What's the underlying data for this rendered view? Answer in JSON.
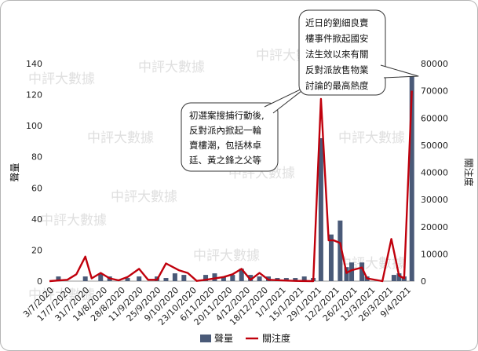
{
  "chart_data": {
    "type": "bar",
    "categories": [
      "3/7/2020",
      "17/7/2020",
      "31/7/2020",
      "14/8/2020",
      "28/8/2020",
      "11/9/2020",
      "25/9/2020",
      "9/10/2020",
      "23/10/2020",
      "6/11/2020",
      "20/11/2020",
      "4/12/2020",
      "18/12/2020",
      "1/1/2021",
      "15/1/2021",
      "29/1/2021",
      "12/2/2021",
      "26/2/2021",
      "12/3/2021",
      "26/3/2021",
      "9/4/2021"
    ],
    "bar_series": {
      "name": "聲量",
      "color": "#4a5a78",
      "points": [
        {
          "x": "2020-07-10",
          "y": 3
        },
        {
          "x": "2020-07-31",
          "y": 3
        },
        {
          "x": "2020-08-12",
          "y": 5
        },
        {
          "x": "2020-08-19",
          "y": 3
        },
        {
          "x": "2020-09-02",
          "y": 2
        },
        {
          "x": "2020-09-11",
          "y": 3
        },
        {
          "x": "2020-09-25",
          "y": 3
        },
        {
          "x": "2020-10-02",
          "y": 2
        },
        {
          "x": "2020-10-09",
          "y": 5
        },
        {
          "x": "2020-10-16",
          "y": 4
        },
        {
          "x": "2020-11-02",
          "y": 4
        },
        {
          "x": "2020-11-09",
          "y": 5
        },
        {
          "x": "2020-11-16",
          "y": 3
        },
        {
          "x": "2020-11-23",
          "y": 4
        },
        {
          "x": "2020-11-30",
          "y": 8
        },
        {
          "x": "2020-12-07",
          "y": 4
        },
        {
          "x": "2020-12-14",
          "y": 3
        },
        {
          "x": "2020-12-21",
          "y": 3
        },
        {
          "x": "2020-12-28",
          "y": 2
        },
        {
          "x": "2021-01-04",
          "y": 2
        },
        {
          "x": "2021-01-11",
          "y": 2
        },
        {
          "x": "2021-01-18",
          "y": 3
        },
        {
          "x": "2021-01-25",
          "y": 2
        },
        {
          "x": "2021-01-31",
          "y": 92
        },
        {
          "x": "2021-02-08",
          "y": 30
        },
        {
          "x": "2021-02-15",
          "y": 39
        },
        {
          "x": "2021-02-20",
          "y": 9
        },
        {
          "x": "2021-02-24",
          "y": 12
        },
        {
          "x": "2021-03-04",
          "y": 12
        },
        {
          "x": "2021-03-08",
          "y": 3
        },
        {
          "x": "2021-03-29",
          "y": 4
        },
        {
          "x": "2021-04-02",
          "y": 5
        },
        {
          "x": "2021-04-06",
          "y": 3
        },
        {
          "x": "2021-04-12",
          "y": 132
        }
      ]
    },
    "line_series": {
      "name": "關注度",
      "color": "#c0000c",
      "points": [
        {
          "x": "2020-07-03",
          "y": 0
        },
        {
          "x": "2020-07-17",
          "y": 500
        },
        {
          "x": "2020-07-24",
          "y": 2500
        },
        {
          "x": "2020-07-31",
          "y": 9000
        },
        {
          "x": "2020-08-05",
          "y": 1000
        },
        {
          "x": "2020-08-12",
          "y": 3000
        },
        {
          "x": "2020-08-19",
          "y": 1000
        },
        {
          "x": "2020-08-26",
          "y": 300
        },
        {
          "x": "2020-09-02",
          "y": 1500
        },
        {
          "x": "2020-09-11",
          "y": 4500
        },
        {
          "x": "2020-09-18",
          "y": 500
        },
        {
          "x": "2020-09-25",
          "y": 500
        },
        {
          "x": "2020-10-02",
          "y": 6500
        },
        {
          "x": "2020-10-12",
          "y": 4000
        },
        {
          "x": "2020-10-19",
          "y": 3000
        },
        {
          "x": "2020-10-26",
          "y": 100
        },
        {
          "x": "2020-11-02",
          "y": 500
        },
        {
          "x": "2020-11-16",
          "y": 1500
        },
        {
          "x": "2020-11-23",
          "y": 2500
        },
        {
          "x": "2020-11-30",
          "y": 4500
        },
        {
          "x": "2020-12-07",
          "y": 500
        },
        {
          "x": "2020-12-14",
          "y": 3000
        },
        {
          "x": "2020-12-21",
          "y": 500
        },
        {
          "x": "2021-01-04",
          "y": 200
        },
        {
          "x": "2021-01-11",
          "y": 100
        },
        {
          "x": "2021-01-25",
          "y": 0
        },
        {
          "x": "2021-01-31",
          "y": 67000
        },
        {
          "x": "2021-02-06",
          "y": 15000
        },
        {
          "x": "2021-02-10",
          "y": 15000
        },
        {
          "x": "2021-02-15",
          "y": 14000
        },
        {
          "x": "2021-02-20",
          "y": 3000
        },
        {
          "x": "2021-02-24",
          "y": 4000
        },
        {
          "x": "2021-03-04",
          "y": 5000
        },
        {
          "x": "2021-03-08",
          "y": 1000
        },
        {
          "x": "2021-03-20",
          "y": 0
        },
        {
          "x": "2021-03-27",
          "y": 15500
        },
        {
          "x": "2021-04-02",
          "y": 2000
        },
        {
          "x": "2021-04-06",
          "y": 1000
        },
        {
          "x": "2021-04-12",
          "y": 70000
        }
      ]
    },
    "x_range": [
      "2020-07-03",
      "2021-04-14"
    ],
    "y_left": {
      "label": "聲量",
      "ticks": [
        0,
        20,
        40,
        60,
        80,
        100,
        120,
        140
      ],
      "min": 0,
      "max": 140
    },
    "y_right": {
      "label": "關注度",
      "ticks": [
        0,
        10000,
        20000,
        30000,
        40000,
        50000,
        60000,
        70000,
        80000
      ],
      "min": 0,
      "max": 80000
    },
    "grid": false,
    "legend": {
      "position": "bottom",
      "items": [
        "聲量",
        "關注度"
      ]
    }
  },
  "annotations": {
    "callout_left": [
      "初選案搜捕行動後,",
      "反對派內掀起一輪",
      "賣樓潮，包括林卓",
      "廷、黃之鋒之父等"
    ],
    "callout_right": [
      "近日的劉細良賣",
      "樓事件掀起國安",
      "法生效以來有關",
      "反對派放售物業",
      "討論的最高熱度"
    ]
  },
  "watermark": "中評大數據"
}
